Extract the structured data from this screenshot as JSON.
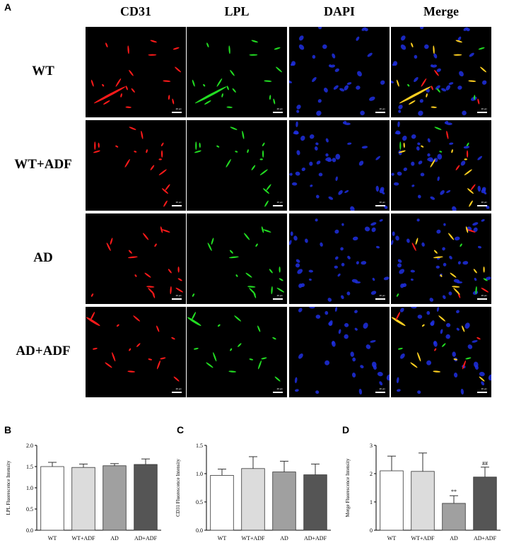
{
  "panels": {
    "A": "A",
    "B": "B",
    "C": "C",
    "D": "D"
  },
  "micrograph": {
    "columns": [
      "CD31",
      "LPL",
      "DAPI",
      "Merge"
    ],
    "rows": [
      "WT",
      "WT+ADF",
      "AD",
      "AD+ADF"
    ],
    "channel_colors": {
      "CD31": "#ff1a1a",
      "LPL": "#22dd22",
      "DAPI": "#1f2fe0",
      "Merge": "#ffd020"
    },
    "scale_bar_label": "20 μm"
  },
  "chart_data": [
    {
      "type": "bar",
      "panel": "B",
      "categories": [
        "WT",
        "WT+ADF",
        "AD",
        "AD+ADF"
      ],
      "values": [
        1.5,
        1.48,
        1.52,
        1.55
      ],
      "errors": [
        0.1,
        0.08,
        0.05,
        0.13
      ],
      "annotations": [
        "",
        "",
        "",
        ""
      ],
      "title": "",
      "xlabel": "",
      "ylabel": "LPL Fluorescence Intensity",
      "ylim": [
        0,
        2.0
      ],
      "yticks": [
        "0.0",
        "0.5",
        "1.0",
        "1.5",
        "2.0"
      ],
      "grid": false
    },
    {
      "type": "bar",
      "panel": "C",
      "categories": [
        "WT",
        "WT+ADF",
        "AD",
        "AD+ADF"
      ],
      "values": [
        0.97,
        1.09,
        1.03,
        0.98
      ],
      "errors": [
        0.11,
        0.21,
        0.19,
        0.19
      ],
      "annotations": [
        "",
        "",
        "",
        ""
      ],
      "title": "",
      "xlabel": "",
      "ylabel": "CD31 Fluorescence Intensity",
      "ylim": [
        0,
        1.5
      ],
      "yticks": [
        "0.0",
        "0.5",
        "1.0",
        "1.5"
      ],
      "grid": false
    },
    {
      "type": "bar",
      "panel": "D",
      "categories": [
        "WT",
        "WT+ADF",
        "AD",
        "AD+ADF"
      ],
      "values": [
        2.1,
        2.08,
        0.95,
        1.88
      ],
      "errors": [
        0.52,
        0.65,
        0.27,
        0.35
      ],
      "annotations": [
        "",
        "",
        "**",
        "##"
      ],
      "title": "",
      "xlabel": "",
      "ylabel": "Merge Fluorescence Intensity",
      "ylim": [
        0,
        3
      ],
      "yticks": [
        "0",
        "1",
        "2",
        "3"
      ],
      "grid": false
    }
  ],
  "bar_fills": [
    "#ffffff",
    "#dcdcdc",
    "#a0a0a0",
    "#555555"
  ]
}
